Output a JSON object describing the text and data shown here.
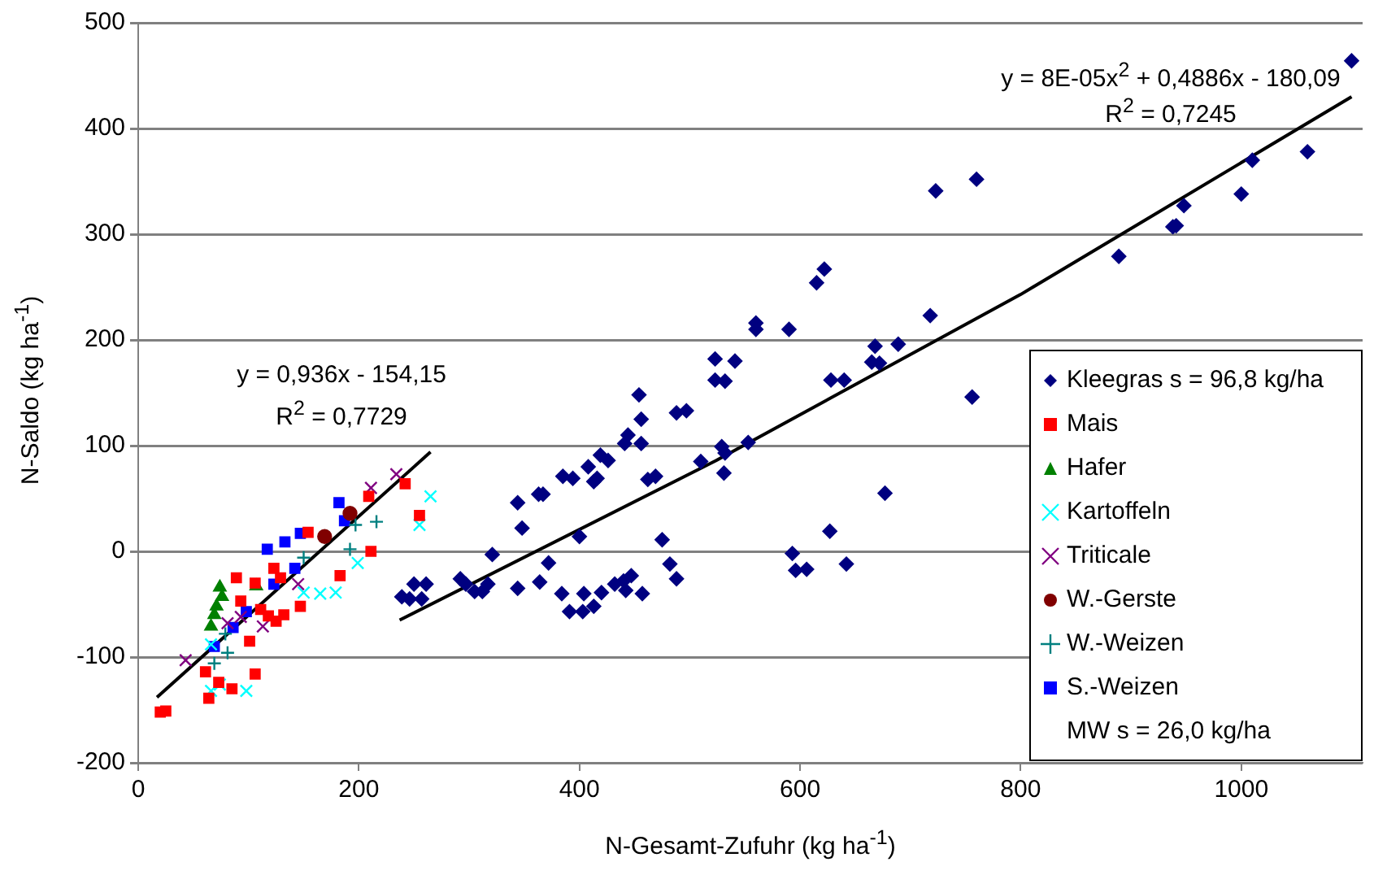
{
  "chart_data": {
    "type": "scatter",
    "xlabel": "N-Gesamt-Zufuhr (kg ha$^{-1}$)",
    "ylabel": "N-Saldo (kg ha$^{-1}$)",
    "xlim": [
      0,
      1110
    ],
    "xticks": [
      0,
      200,
      400,
      600,
      800,
      1000
    ],
    "ylim": [
      -200,
      500
    ],
    "yticks": [
      -200,
      -100,
      0,
      100,
      200,
      300,
      400,
      500
    ],
    "grid": "y",
    "legend": "bottom right",
    "annotations": [
      "y = 8E-05x$^{2}$ + 0,4886x - 180,09",
      "R$^{2}$ = 0,7245",
      "y = 0,936x - 154,15",
      "R$^{2}$ = 0,7729",
      "MW s = 26,0 kg/ha"
    ],
    "series": [
      {
        "name": "Kleegras s = 96,8 kg/ha",
        "color": "#000080",
        "marker": "diamond",
        "x": [
          1100,
          1060,
          1010,
          1000,
          948,
          941,
          938,
          889,
          760,
          723,
          718,
          756,
          677,
          622,
          615,
          560,
          560,
          590,
          541,
          523,
          523,
          532,
          668,
          689,
          665,
          672,
          628,
          640,
          529,
          532,
          553,
          531,
          627,
          593,
          596,
          606,
          642,
          454,
          456,
          444,
          441,
          456,
          419,
          426,
          408,
          385,
          394,
          416,
          413,
          488,
          497,
          510,
          469,
          462,
          344,
          363,
          367,
          348,
          400,
          475,
          321,
          372,
          482,
          488,
          239,
          250,
          261,
          246,
          257,
          292,
          297,
          305,
          317,
          312,
          344,
          364,
          384,
          391,
          403,
          413,
          404,
          420,
          432,
          440,
          447,
          442,
          457
        ],
        "values": [
          464,
          378,
          370,
          338,
          327,
          308,
          307,
          279,
          352,
          341,
          223,
          146,
          55,
          267,
          254,
          216,
          210,
          210,
          180,
          182,
          162,
          161,
          194,
          196,
          179,
          178,
          162,
          162,
          99,
          93,
          103,
          74,
          19,
          -2,
          -18,
          -17,
          -12,
          148,
          125,
          110,
          102,
          102,
          91,
          86,
          80,
          71,
          69,
          69,
          66,
          131,
          133,
          85,
          71,
          68,
          46,
          54,
          54,
          22,
          14,
          11,
          -3,
          -11,
          -12,
          -26,
          -43,
          -31,
          -31,
          -45,
          -45,
          -26,
          -31,
          -38,
          -31,
          -38,
          -35,
          -29,
          -40,
          -57,
          -57,
          -52,
          -40,
          -39,
          -31,
          -28,
          -23,
          -37,
          -40
        ]
      },
      {
        "name": "Mais",
        "color": "#ff0000",
        "marker": "square",
        "x": [
          20,
          25,
          242,
          255,
          211,
          209,
          183,
          154,
          123,
          129,
          89,
          106,
          93,
          111,
          118,
          132,
          147,
          125,
          101,
          106,
          61,
          73,
          64,
          85
        ],
        "values": [
          -152,
          -151,
          64,
          34,
          0,
          52,
          -23,
          18,
          -16,
          -25,
          -25,
          -30,
          -47,
          -55,
          -61,
          -60,
          -52,
          -66,
          -85,
          -116,
          -114,
          -124,
          -139,
          -130
        ]
      },
      {
        "name": "Hafer",
        "color": "#008000",
        "marker": "triangle",
        "x": [
          74,
          76,
          71,
          69,
          66,
          107
        ],
        "values": [
          -34,
          -43,
          -52,
          -60,
          -71,
          -33
        ]
      },
      {
        "name": "Kartoffeln",
        "color": "#00ffff",
        "marker": "cross",
        "x": [
          265,
          255,
          199,
          179,
          165,
          150,
          98,
          66,
          74,
          66
        ],
        "values": [
          52,
          25,
          -11,
          -39,
          -40,
          -39,
          -132,
          -132,
          -126,
          -88
        ]
      },
      {
        "name": "Triticale",
        "color": "#800080",
        "marker": "cross",
        "x": [
          234,
          211,
          43,
          145,
          113,
          81,
          93
        ],
        "values": [
          73,
          60,
          -103,
          -31,
          -71,
          -68,
          -62
        ]
      },
      {
        "name": "W.-Gerste",
        "color": "#800000",
        "marker": "circle",
        "x": [
          192,
          169
        ],
        "values": [
          36,
          14
        ]
      },
      {
        "name": "W.-Weizen",
        "color": "#008080",
        "marker": "plus",
        "x": [
          192,
          216,
          197,
          150,
          81,
          69,
          79
        ],
        "values": [
          2,
          28,
          25,
          -6,
          -96,
          -106,
          -78
        ]
      },
      {
        "name": "S.-Weizen",
        "color": "#0000ff",
        "marker": "square",
        "x": [
          182,
          147,
          133,
          117,
          142,
          123,
          98,
          86,
          69,
          187
        ],
        "values": [
          46,
          17,
          9,
          2,
          -16,
          -31,
          -57,
          -72,
          -90,
          29
        ]
      },
      {
        "type": "line",
        "color": "#000000",
        "marker": "none",
        "x": [
          17,
          265
        ],
        "values": [
          -138,
          94
        ]
      },
      {
        "type": "line",
        "color": "#000000",
        "marker": "none",
        "x": [
          237,
          524,
          800,
          1100
        ],
        "values": [
          -65,
          86,
          243,
          430
        ]
      }
    ]
  }
}
